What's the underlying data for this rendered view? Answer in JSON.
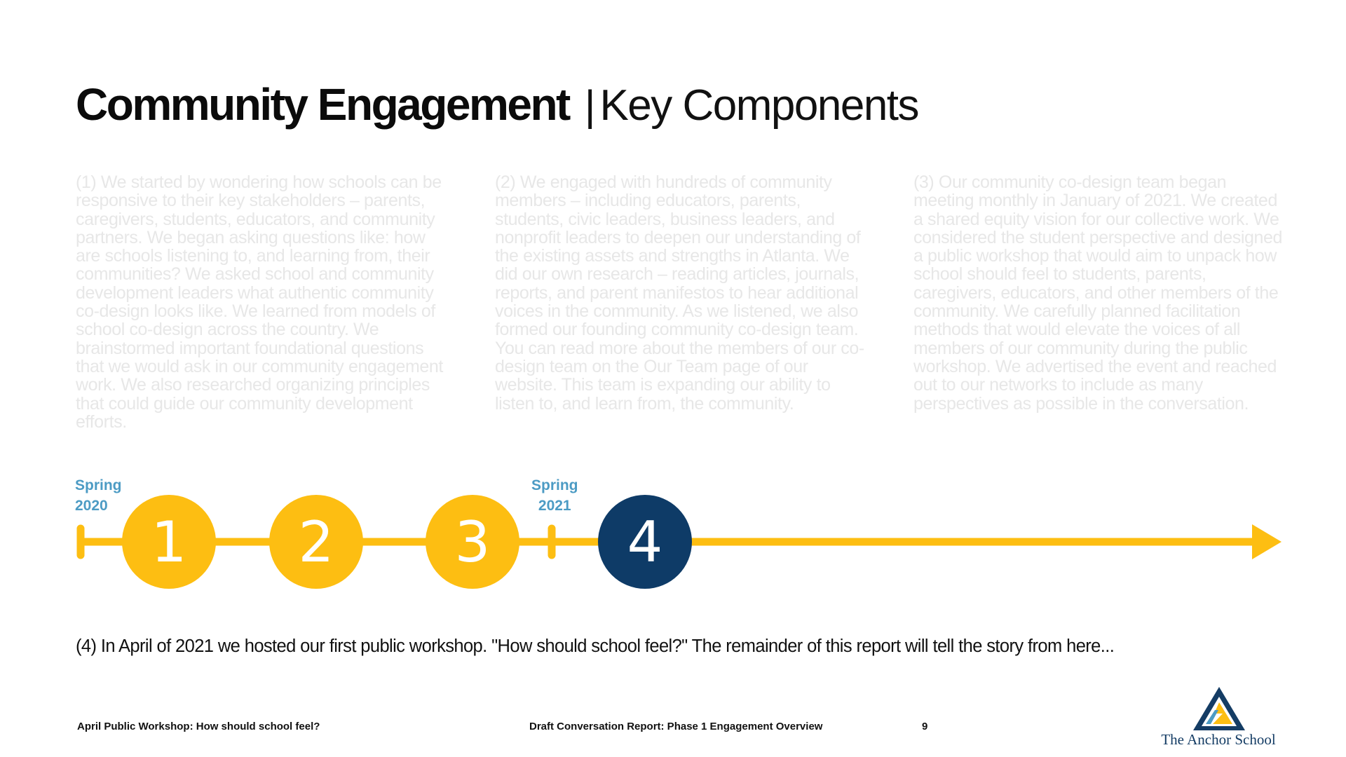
{
  "title": {
    "bold": "Community Engagement",
    "separator": "|",
    "light": "Key Components"
  },
  "columns": [
    {
      "text": "(1) We started by wondering how schools can be responsive to their key stakeholders – parents, caregivers, students, educators, and community partners. We began asking questions like: how are schools listening to, and learning from, their communities? We asked school and community development leaders what authentic community co-design looks like. We learned from models of school co-design across the country. We brainstormed important foundational questions that we would ask in our community engagement work. We also researched organizing principles that could guide our community development efforts."
    },
    {
      "text": "(2) We engaged with hundreds of community members – including educators, parents, students, civic leaders, business leaders, and nonprofit leaders to deepen our understanding of the existing assets and strengths in Atlanta. We did our own research – reading articles, journals, reports, and parent manifestos to hear additional voices in the community. As we listened, we also formed our founding community co-design team. You can read more about the members of our co-design team on the Our Team page of our website. This team is expanding our ability to listen to, and learn from, the community."
    },
    {
      "text": "(3) Our community co-design team began meeting monthly in January of 2021. We created a shared equity vision for our collective work. We considered the student perspective and designed a public workshop that would aim to unpack how school should feel to students, parents, caregivers, educators, and other members of the community. We carefully planned facilitation methods that would elevate the voices of all members of our community during the public workshop. We advertised the event and reached out to our networks to include as many perspectives as possible in the conversation."
    }
  ],
  "timeline": {
    "markers": [
      {
        "line1": "Spring",
        "line2": "2020"
      },
      {
        "line1": "Spring",
        "line2": "2021"
      }
    ],
    "steps": [
      {
        "number": "1",
        "status": "completed"
      },
      {
        "number": "2",
        "status": "completed"
      },
      {
        "number": "3",
        "status": "completed"
      },
      {
        "number": "4",
        "status": "current"
      }
    ],
    "colors": {
      "line": "#fdbe12",
      "completed": "#fdbe12",
      "current": "#0e3b67",
      "marker_label": "#4c9bc4"
    }
  },
  "statement": "(4) In April of 2021 we hosted our first public workshop. \"How should school feel?\" The remainder of this report will tell the story from here...",
  "footer": {
    "left": "April Public Workshop: How should school feel?",
    "center": "Draft Conversation Report: Phase 1 Engagement Overview",
    "page_number": "9"
  },
  "logo": {
    "name": "The Anchor School",
    "icon": "anchor-school-triangle-logo"
  }
}
